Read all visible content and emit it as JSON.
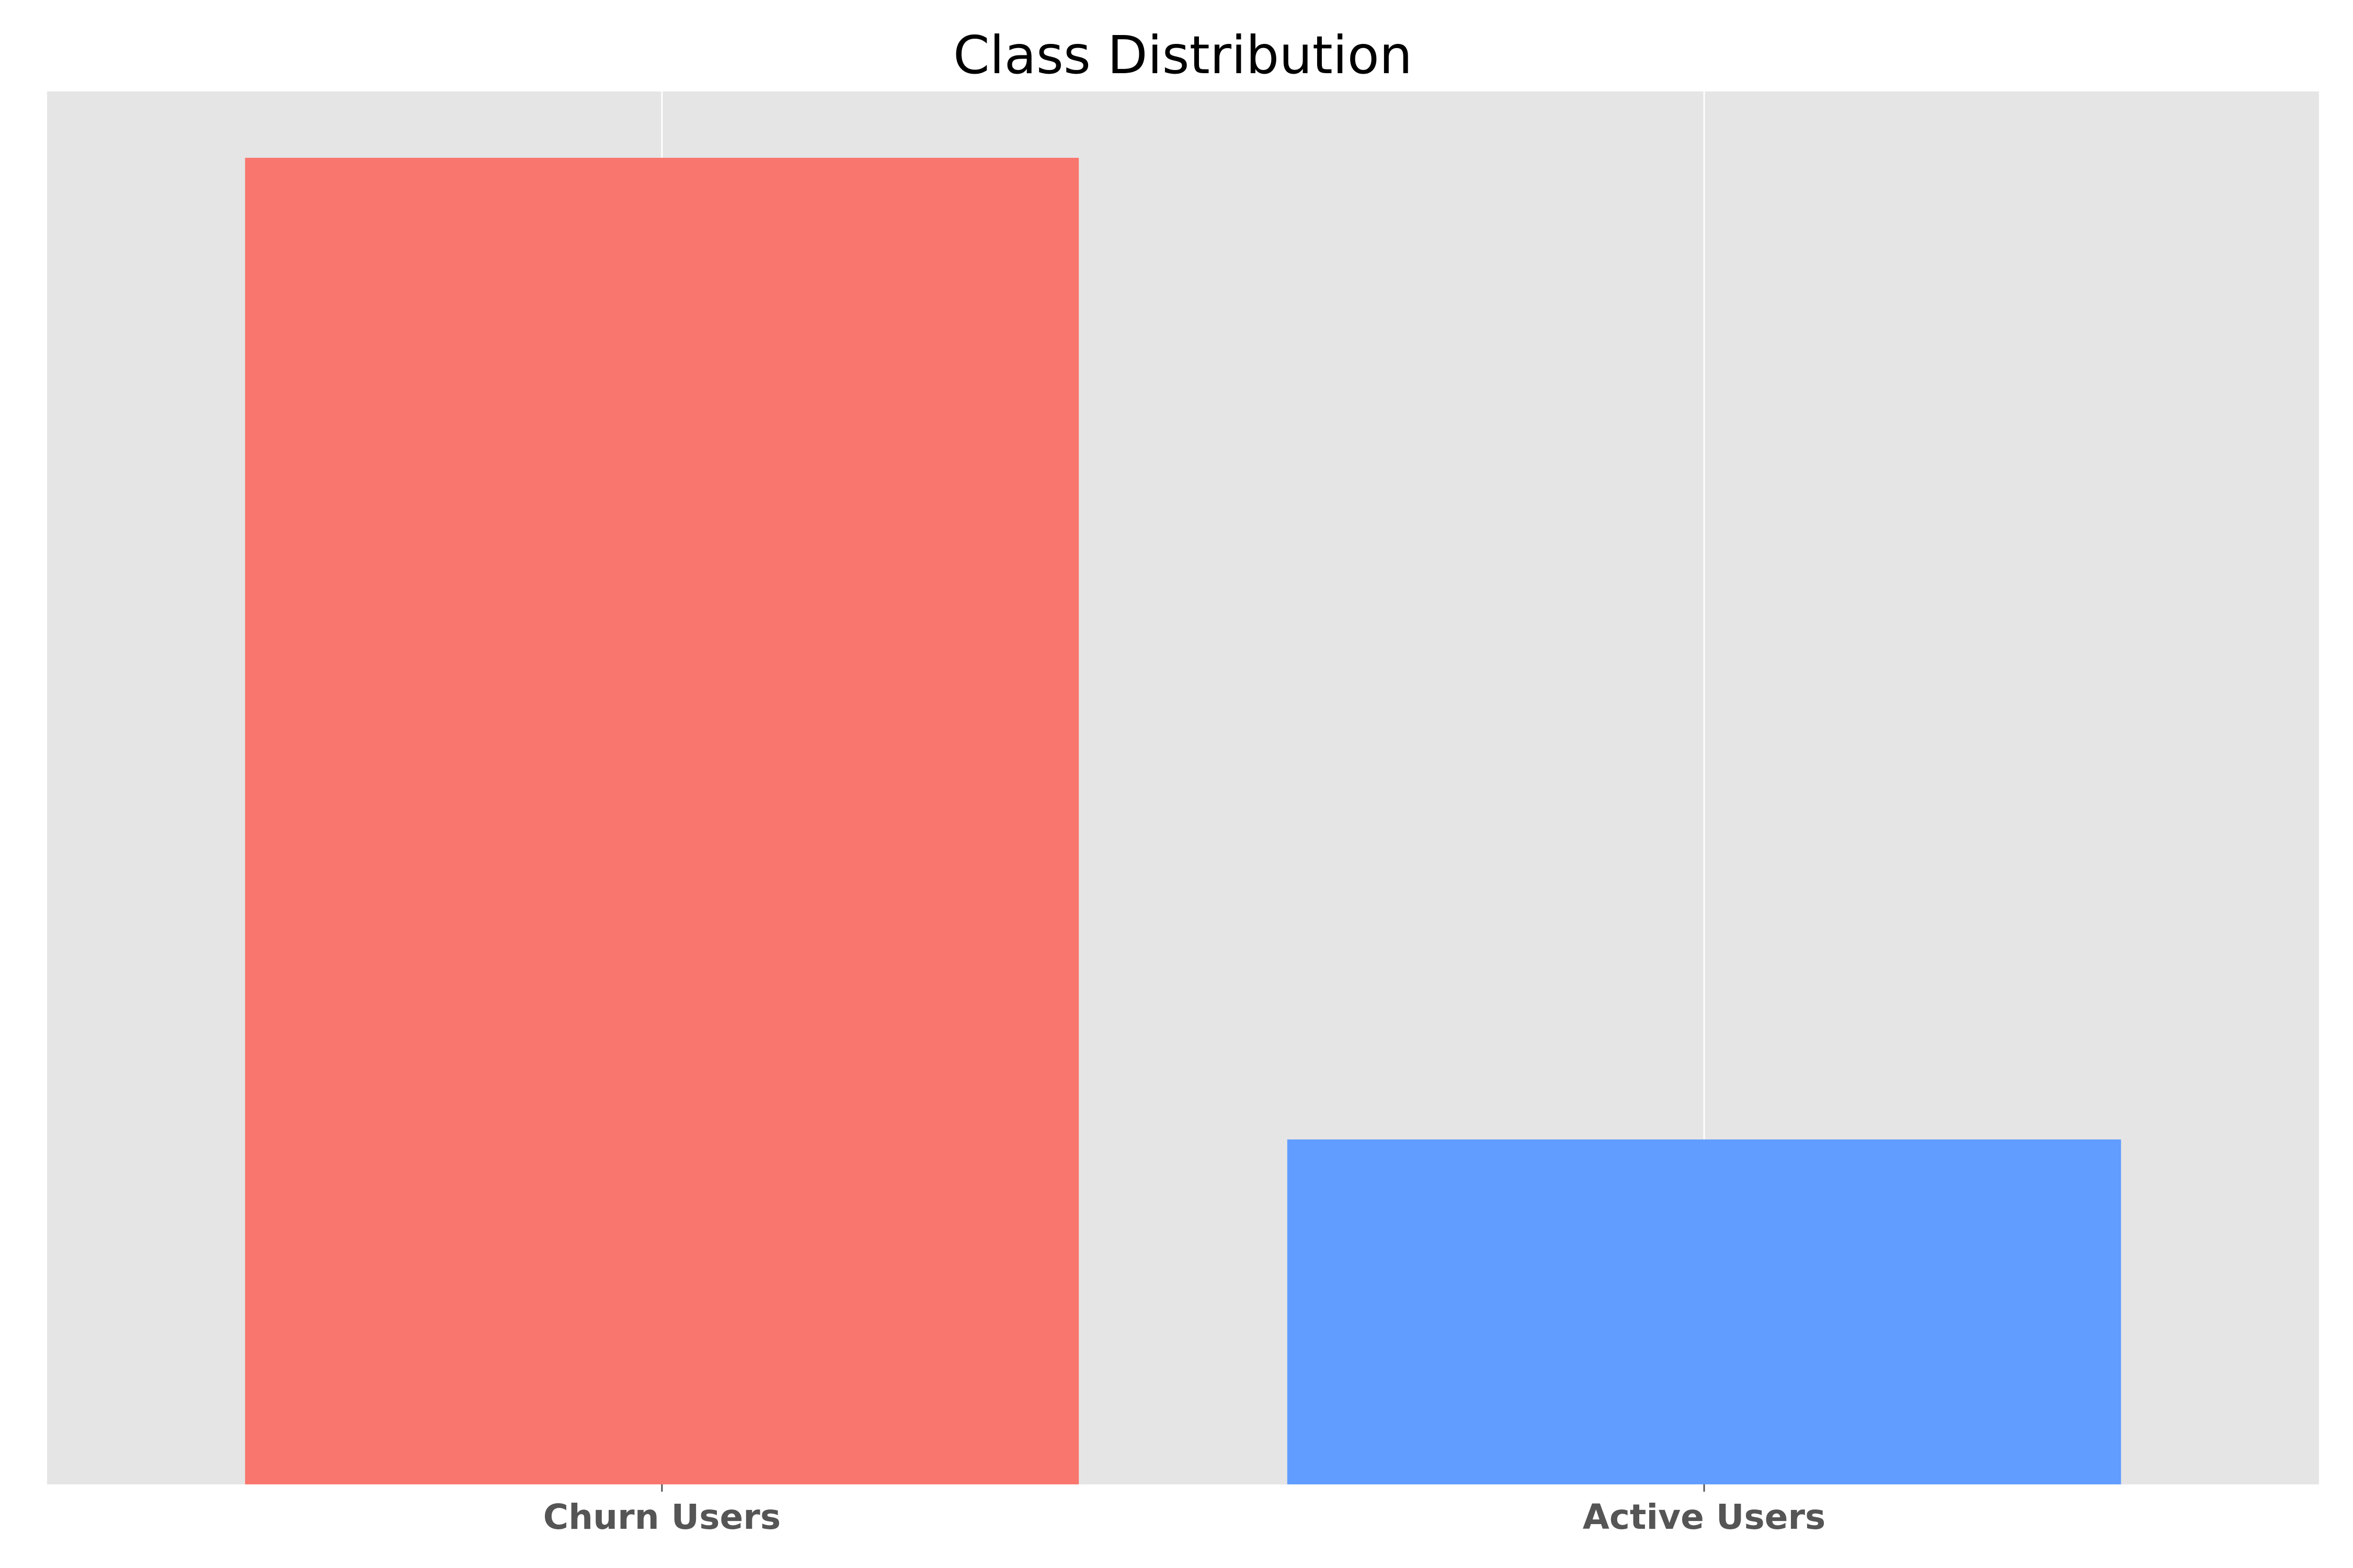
{
  "chart_data": {
    "type": "bar",
    "title": "Class Distribution",
    "xlabel": "",
    "ylabel": "",
    "categories": [
      "Churn Users",
      "Active Users"
    ],
    "values": [
      100,
      26
    ],
    "ylim": [
      0,
      105
    ],
    "y_ticks_visible": false,
    "grid": {
      "x": true,
      "y": false
    },
    "colors": [
      "#F8766D",
      "#619CFF"
    ],
    "background": "#E5E5E5",
    "grid_color": "#FFFFFF",
    "tick_label_color": "#555555"
  }
}
